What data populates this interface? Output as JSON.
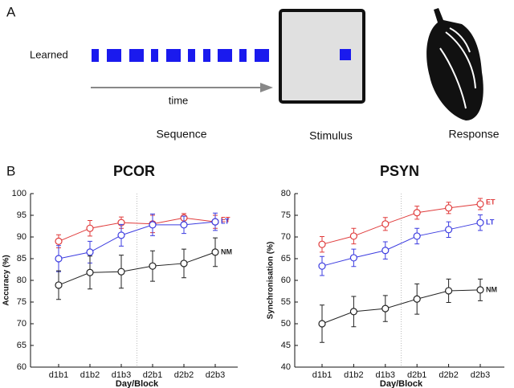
{
  "panel_a": {
    "label": "A",
    "sequence_label": "Learned",
    "time_label": "time",
    "captions": [
      "Sequence",
      "Stimulus",
      "Response"
    ]
  },
  "panel_b_label": "B",
  "chart_data": [
    {
      "type": "line",
      "title": "PCOR",
      "xlabel": "Day/Block",
      "ylabel": "Accuracy (%)",
      "categories": [
        "d1b1",
        "d1b2",
        "d1b3",
        "d2b1",
        "d2b2",
        "d2b3"
      ],
      "ylim": [
        60,
        100
      ],
      "yticks": [
        60,
        65,
        70,
        75,
        80,
        85,
        90,
        95,
        100
      ],
      "series": [
        {
          "name": "ET",
          "color": "#e03c3c",
          "values": [
            89,
            92,
            93.3,
            93,
            94.4,
            93.5
          ],
          "errors": [
            1.5,
            1.8,
            1.3,
            2,
            1,
            1.5
          ]
        },
        {
          "name": "LT",
          "color": "#3c3ce0",
          "values": [
            85,
            86.5,
            90.4,
            92.8,
            92.8,
            93.5
          ],
          "errors": [
            3,
            2.5,
            2.5,
            2.5,
            2,
            2
          ]
        },
        {
          "name": "NM",
          "color": "#222222",
          "values": [
            78.9,
            81.8,
            82,
            83.3,
            83.9,
            86.5
          ],
          "errors": [
            3.3,
            3.8,
            3.8,
            3.5,
            3.3,
            3.3
          ]
        }
      ]
    },
    {
      "type": "line",
      "title": "PSYN",
      "xlabel": "Day/Block",
      "ylabel": "Synchronisation (%)",
      "categories": [
        "d1b1",
        "d1b2",
        "d1b3",
        "d2b1",
        "d2b2",
        "d2b3"
      ],
      "ylim": [
        40,
        80
      ],
      "yticks": [
        40,
        45,
        50,
        55,
        60,
        65,
        70,
        75,
        80
      ],
      "series": [
        {
          "name": "ET",
          "color": "#e03c3c",
          "values": [
            68.3,
            70.2,
            73,
            75.6,
            76.7,
            77.6
          ],
          "errors": [
            1.8,
            1.8,
            1.5,
            1.5,
            1.3,
            1.3
          ]
        },
        {
          "name": "LT",
          "color": "#3c3ce0",
          "values": [
            63.3,
            65.2,
            66.9,
            70.2,
            71.7,
            73.3
          ],
          "errors": [
            2.2,
            2,
            2,
            1.8,
            1.8,
            1.8
          ]
        },
        {
          "name": "NM",
          "color": "#222222",
          "values": [
            50,
            52.8,
            53.5,
            55.7,
            57.6,
            57.8
          ],
          "errors": [
            4.3,
            3.5,
            3,
            3.5,
            2.7,
            2.5
          ]
        }
      ]
    }
  ]
}
